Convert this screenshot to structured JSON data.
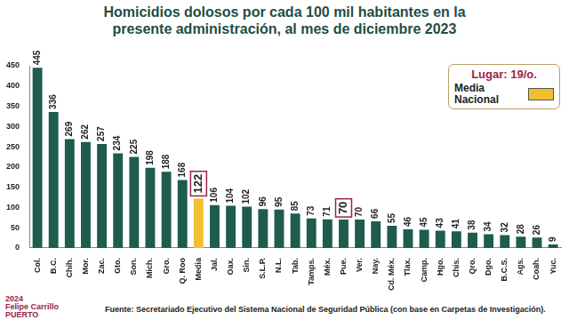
{
  "chart_data": {
    "type": "bar",
    "title": [
      "Homicidios dolosos por cada 100 mil habitantes en la",
      "presente administración, al mes de diciembre 2023"
    ],
    "categories": [
      "Col.",
      "B.C.",
      "Chih.",
      "Mor.",
      "Zac.",
      "Gto.",
      "Son.",
      "Mich.",
      "Gro.",
      "Q. Roo",
      "Media",
      "Jal.",
      "Oax.",
      "Sin.",
      "S.L.P.",
      "N.L.",
      "Tab.",
      "Tamps.",
      "Méx.",
      "Pue.",
      "Ver.",
      "Nay.",
      "Cd. Méx.",
      "Tlax.",
      "Camp.",
      "Hgo.",
      "Chis.",
      "Qro.",
      "Dgo.",
      "B.C.S.",
      "Ags.",
      "Coah.",
      "Yuc."
    ],
    "values": [
      445,
      336,
      269,
      262,
      257,
      234,
      225,
      198,
      188,
      168,
      122,
      106,
      104,
      102,
      96,
      95,
      85,
      73,
      71,
      70,
      70,
      66,
      55,
      46,
      45,
      43,
      41,
      38,
      34,
      32,
      28,
      26,
      9
    ],
    "colors": [
      "#1d5c4f",
      "#1d5c4f",
      "#1d5c4f",
      "#1d5c4f",
      "#1d5c4f",
      "#1d5c4f",
      "#1d5c4f",
      "#1d5c4f",
      "#1d5c4f",
      "#1d5c4f",
      "#f0c030",
      "#1d5c4f",
      "#1d5c4f",
      "#1d5c4f",
      "#1d5c4f",
      "#1d5c4f",
      "#1d5c4f",
      "#1d5c4f",
      "#1d5c4f",
      "#1d5c4f",
      "#1d5c4f",
      "#1d5c4f",
      "#1d5c4f",
      "#1d5c4f",
      "#1d5c4f",
      "#1d5c4f",
      "#1d5c4f",
      "#1d5c4f",
      "#1d5c4f",
      "#1d5c4f",
      "#1d5c4f",
      "#1d5c4f",
      "#1d5c4f"
    ],
    "highlighted": [
      "Media",
      "Pue."
    ],
    "ylim": [
      0,
      450
    ],
    "yticks": [
      0,
      50,
      100,
      150,
      200,
      250,
      300,
      350,
      400,
      450
    ],
    "grid": false,
    "data_labels": true,
    "legend_box": {
      "title": "Lugar: 19/o.",
      "label": "Media Nacional",
      "color": "#f0c030"
    },
    "logo_text": [
      "2024",
      "Felipe Carrillo",
      "PUERTO"
    ],
    "source": "Fuente:  Secretariado Ejecutivo del Sistema Nacional de Seguridad Pública (con base en Carpetas de Investigación)."
  }
}
